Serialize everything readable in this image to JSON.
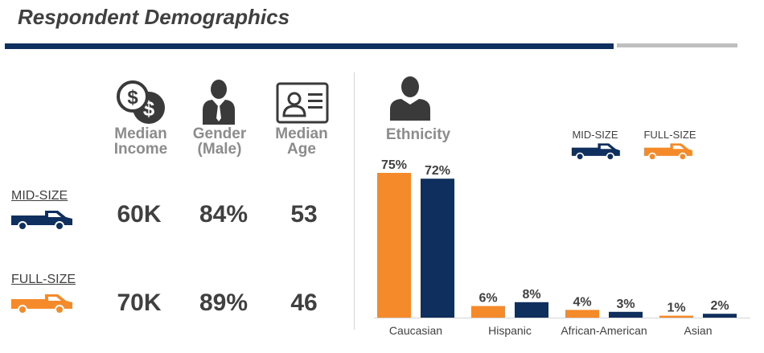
{
  "page": {
    "title": "Respondent Demographics"
  },
  "demographics": {
    "columns": {
      "income": [
        "Median",
        "Income"
      ],
      "gender": [
        "Gender",
        "(Male)"
      ],
      "age": [
        "Median",
        "Age"
      ]
    },
    "rows": [
      {
        "label": "MID-SIZE",
        "income": "60K",
        "gender": "84%",
        "age": "53",
        "color": "#0f2f5f"
      },
      {
        "label": "FULL-SIZE",
        "income": "70K",
        "gender": "89%",
        "age": "46",
        "color": "#f58a2b"
      }
    ],
    "icons": [
      "money-icon",
      "person-suit-icon",
      "id-card-icon",
      "truck-icon"
    ]
  },
  "chart_data": {
    "type": "bar",
    "title": "Ethnicity",
    "categories": [
      "Caucasian",
      "Hispanic",
      "African-American",
      "Asian"
    ],
    "series": [
      {
        "name": "FULL-SIZE",
        "values": [
          75,
          6,
          4,
          1
        ],
        "labels": [
          "75%",
          "6%",
          "4%",
          "1%"
        ],
        "color": "#f58a2b"
      },
      {
        "name": "MID-SIZE",
        "values": [
          72,
          8,
          3,
          2
        ],
        "labels": [
          "72%",
          "8%",
          "3%",
          "2%"
        ],
        "color": "#0f2f5f"
      }
    ],
    "ylim": [
      0,
      75
    ],
    "legend": [
      {
        "label": "MID-SIZE",
        "color": "#0f2f5f"
      },
      {
        "label": "FULL-SIZE",
        "color": "#f58a2b"
      }
    ],
    "legend_position": "top-right",
    "grid": false
  }
}
